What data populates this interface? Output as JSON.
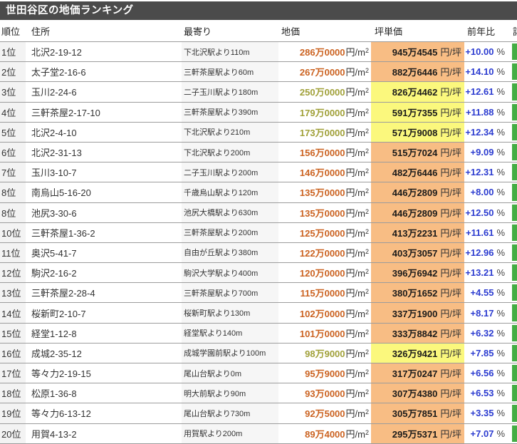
{
  "title": "世田谷区の地価ランキング",
  "table": {
    "headers": {
      "rank": "順位",
      "address": "住所",
      "station": "最寄り",
      "price": "地価",
      "tsubo": "坪単価",
      "yoy": "前年比",
      "more": "詳細"
    },
    "units": {
      "price_prefix": "円/m",
      "price_sup": "2",
      "tsubo": "円/坪",
      "percent": "%"
    },
    "colors": {
      "titlebar_bg": "#4b4b4b",
      "kouji_cell_bg": "#f8bd84",
      "kijun_cell_bg": "#fbf87d",
      "kouji_price_text": "#cb6220",
      "kijun_price_text": "#a0a038",
      "yoy_text": "#2b3bd0",
      "detail_green": "#44ad44"
    },
    "rows": [
      {
        "rank": "1位",
        "address": "北沢2-19-12",
        "station": "下北沢駅より110m",
        "price": "286万0000",
        "tsubo": "945万4545",
        "yoy": "+10.00",
        "type": "kouji"
      },
      {
        "rank": "2位",
        "address": "太子堂2-16-6",
        "station": "三軒茶屋駅より60m",
        "price": "267万0000",
        "tsubo": "882万6446",
        "yoy": "+14.10",
        "type": "kouji"
      },
      {
        "rank": "3位",
        "address": "玉川2-24-6",
        "station": "二子玉川駅より180m",
        "price": "250万0000",
        "tsubo": "826万4462",
        "yoy": "+12.61",
        "type": "kijun"
      },
      {
        "rank": "4位",
        "address": "三軒茶屋2-17-10",
        "station": "三軒茶屋駅より390m",
        "price": "179万0000",
        "tsubo": "591万7355",
        "yoy": "+11.88",
        "type": "kijun"
      },
      {
        "rank": "5位",
        "address": "北沢2-4-10",
        "station": "下北沢駅より210m",
        "price": "173万0000",
        "tsubo": "571万9008",
        "yoy": "+12.34",
        "type": "kijun"
      },
      {
        "rank": "6位",
        "address": "北沢2-31-13",
        "station": "下北沢駅より200m",
        "price": "156万0000",
        "tsubo": "515万7024",
        "yoy": "+9.09",
        "type": "kouji"
      },
      {
        "rank": "7位",
        "address": "玉川3-10-7",
        "station": "二子玉川駅より200m",
        "price": "146万0000",
        "tsubo": "482万6446",
        "yoy": "+12.31",
        "type": "kouji"
      },
      {
        "rank": "8位",
        "address": "南烏山5-16-20",
        "station": "千歳烏山駅より120m",
        "price": "135万0000",
        "tsubo": "446万2809",
        "yoy": "+8.00",
        "type": "kouji"
      },
      {
        "rank": "8位",
        "address": "池尻3-30-6",
        "station": "池尻大橋駅より630m",
        "price": "135万0000",
        "tsubo": "446万2809",
        "yoy": "+12.50",
        "type": "kouji"
      },
      {
        "rank": "10位",
        "address": "三軒茶屋1-36-2",
        "station": "三軒茶屋駅より200m",
        "price": "125万0000",
        "tsubo": "413万2231",
        "yoy": "+11.61",
        "type": "kouji"
      },
      {
        "rank": "11位",
        "address": "奥沢5-41-7",
        "station": "自由が丘駅より380m",
        "price": "122万0000",
        "tsubo": "403万3057",
        "yoy": "+12.96",
        "type": "kouji"
      },
      {
        "rank": "12位",
        "address": "駒沢2-16-2",
        "station": "駒沢大学駅より400m",
        "price": "120万0000",
        "tsubo": "396万6942",
        "yoy": "+13.21",
        "type": "kouji"
      },
      {
        "rank": "13位",
        "address": "三軒茶屋2-28-4",
        "station": "三軒茶屋駅より700m",
        "price": "115万0000",
        "tsubo": "380万1652",
        "yoy": "+4.55",
        "type": "kouji"
      },
      {
        "rank": "14位",
        "address": "桜新町2-10-7",
        "station": "桜新町駅より130m",
        "price": "102万0000",
        "tsubo": "337万1900",
        "yoy": "+8.17",
        "type": "kouji"
      },
      {
        "rank": "15位",
        "address": "経堂1-12-8",
        "station": "経堂駅より140m",
        "price": "101万0000",
        "tsubo": "333万8842",
        "yoy": "+6.32",
        "type": "kouji"
      },
      {
        "rank": "16位",
        "address": "成城2-35-12",
        "station": "成城学園前駅より100m",
        "price": "98万9000",
        "tsubo": "326万9421",
        "yoy": "+7.85",
        "type": "kijun"
      },
      {
        "rank": "17位",
        "address": "等々力2-19-15",
        "station": "尾山台駅より0m",
        "price": "95万9000",
        "tsubo": "317万0247",
        "yoy": "+6.56",
        "type": "kouji"
      },
      {
        "rank": "18位",
        "address": "松原1-36-8",
        "station": "明大前駅より90m",
        "price": "93万0000",
        "tsubo": "307万4380",
        "yoy": "+6.53",
        "type": "kouji"
      },
      {
        "rank": "19位",
        "address": "等々力6-13-12",
        "station": "尾山台駅より730m",
        "price": "92万5000",
        "tsubo": "305万7851",
        "yoy": "+3.35",
        "type": "kouji"
      },
      {
        "rank": "20位",
        "address": "用賀4-13-2",
        "station": "用賀駅より200m",
        "price": "89万4000",
        "tsubo": "295万5371",
        "yoy": "+7.07",
        "type": "kouji"
      }
    ]
  }
}
